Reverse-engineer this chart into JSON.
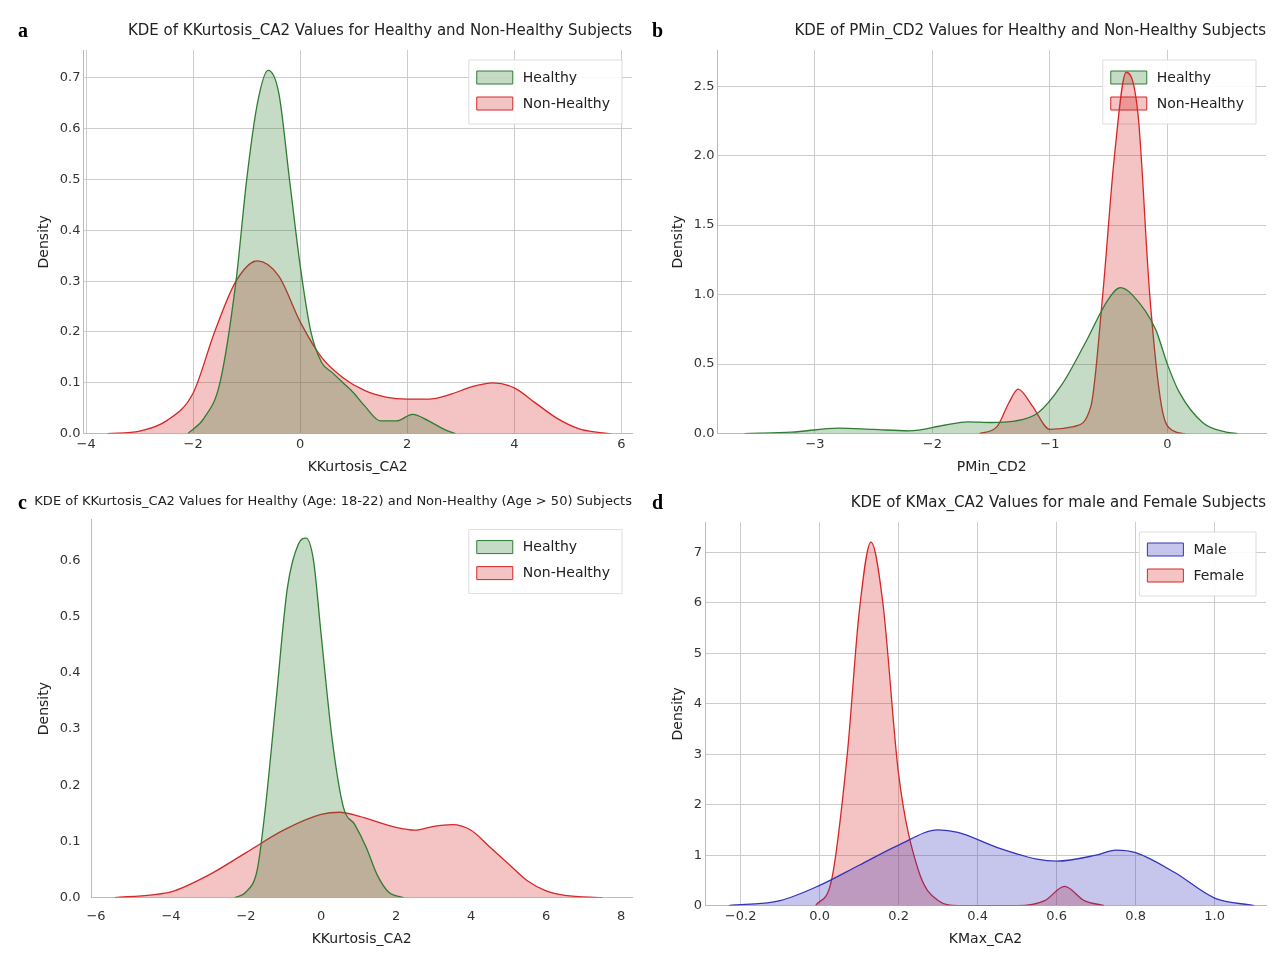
{
  "chart_data": [
    {
      "type": "area",
      "title": "KDE of KKurtosis_CA2 Values for Healthy and Non-Healthy Subjects",
      "xlabel": "KKurtosis_CA2",
      "ylabel": "Density",
      "annotations": [
        "a"
      ],
      "xlim": [
        -4.05,
        6.2
      ],
      "ylim": [
        0,
        0.755
      ],
      "xticks": [
        {
          "value": -4,
          "label": "−4"
        },
        {
          "value": -2,
          "label": "−2"
        },
        0,
        2,
        4,
        6
      ],
      "yticks": [
        {
          "value": 0,
          "label": "0.0"
        },
        0.1,
        0.2,
        0.3,
        0.4,
        0.5,
        0.6,
        0.7
      ],
      "grid": true,
      "legend": "top right",
      "series": [
        {
          "name": "Healthy",
          "color": "#2e7d32",
          "x": [
            -2.1,
            -1.8,
            -1.5,
            -1.2,
            -1.0,
            -0.8,
            -0.6,
            -0.4,
            -0.2,
            0,
            0.2,
            0.4,
            0.6,
            0.8,
            1.0,
            1.2,
            1.5,
            1.8,
            2.1,
            2.4,
            2.7,
            2.9
          ],
          "values": [
            0,
            0.03,
            0.1,
            0.3,
            0.5,
            0.65,
            0.715,
            0.67,
            0.5,
            0.33,
            0.2,
            0.14,
            0.12,
            0.1,
            0.08,
            0.055,
            0.025,
            0.025,
            0.038,
            0.025,
            0.008,
            0
          ]
        },
        {
          "name": "Non-Healthy",
          "color": "#d62728",
          "x": [
            -3.6,
            -3,
            -2.5,
            -2,
            -1.6,
            -1.2,
            -0.8,
            -0.4,
            0,
            0.4,
            0.8,
            1.2,
            1.6,
            2,
            2.4,
            2.8,
            3.2,
            3.6,
            4,
            4.4,
            4.8,
            5.2,
            5.6,
            5.8
          ],
          "values": [
            0,
            0.005,
            0.025,
            0.08,
            0.2,
            0.3,
            0.34,
            0.31,
            0.22,
            0.15,
            0.11,
            0.085,
            0.072,
            0.068,
            0.068,
            0.077,
            0.092,
            0.1,
            0.09,
            0.06,
            0.03,
            0.01,
            0.002,
            0
          ]
        }
      ]
    },
    {
      "type": "area",
      "title": "KDE of PMin_CD2 Values for Healthy and Non-Healthy Subjects",
      "xlabel": "PMin_CD2",
      "ylabel": "Density",
      "annotations": [
        "b"
      ],
      "xlim": [
        -3.83,
        0.84
      ],
      "ylim": [
        0,
        2.76
      ],
      "xticks": [
        {
          "value": -3,
          "label": "−3"
        },
        {
          "value": -2,
          "label": "−2"
        },
        {
          "value": -1,
          "label": "−1"
        },
        0
      ],
      "yticks": [
        {
          "value": 0,
          "label": "0.0"
        },
        0.5,
        {
          "value": 1,
          "label": "1.0"
        },
        1.5,
        {
          "value": 2,
          "label": "2.0"
        },
        2.5
      ],
      "grid": true,
      "legend": "top right",
      "series": [
        {
          "name": "Healthy",
          "color": "#2e7d32",
          "x": [
            -3.6,
            -3.2,
            -2.8,
            -2.5,
            -2.2,
            -1.9,
            -1.7,
            -1.5,
            -1.3,
            -1.1,
            -0.9,
            -0.7,
            -0.5,
            -0.4,
            -0.3,
            -0.1,
            0,
            0.1,
            0.3,
            0.5,
            0.6
          ],
          "values": [
            0,
            0.01,
            0.04,
            0.03,
            0.02,
            0.06,
            0.085,
            0.08,
            0.09,
            0.15,
            0.35,
            0.65,
            0.97,
            1.05,
            1.0,
            0.75,
            0.5,
            0.3,
            0.08,
            0.01,
            0
          ]
        },
        {
          "name": "Non-Healthy",
          "color": "#d62728",
          "x": [
            -1.6,
            -1.45,
            -1.35,
            -1.27,
            -1.15,
            -1.0,
            -0.8,
            -0.65,
            -0.55,
            -0.45,
            -0.35,
            -0.25,
            -0.15,
            -0.05,
            0.05,
            0.15
          ],
          "values": [
            0,
            0.05,
            0.22,
            0.32,
            0.2,
            0.03,
            0.05,
            0.2,
            1.0,
            2.0,
            2.6,
            2.3,
            1.0,
            0.2,
            0.02,
            0
          ]
        }
      ]
    },
    {
      "type": "area",
      "title": "KDE of KKurtosis_CA2 Values for Healthy (Age: 18-22) and Non-Healthy (Age > 50) Subjects",
      "xlabel": "KKurtosis_CA2",
      "ylabel": "Density",
      "annotations": [
        "c"
      ],
      "xlim": [
        -6.12,
        8.29
      ],
      "ylim": [
        0,
        0.673
      ],
      "xticks": [
        {
          "value": -6,
          "label": "−6"
        },
        {
          "value": -4,
          "label": "−4"
        },
        {
          "value": -2,
          "label": "−2"
        },
        0,
        2,
        4,
        6,
        8
      ],
      "yticks": [
        {
          "value": 0,
          "label": "0.0"
        },
        0.1,
        0.2,
        0.3,
        0.4,
        0.5,
        0.6
      ],
      "legend": "top right",
      "series": [
        {
          "name": "Healthy",
          "color": "#2e7d32",
          "x": [
            -2.3,
            -2,
            -1.7,
            -1.5,
            -1.2,
            -0.9,
            -0.6,
            -0.4,
            -0.2,
            0,
            0.3,
            0.6,
            0.9,
            1.2,
            1.5,
            1.8,
            2.2
          ],
          "values": [
            0,
            0.01,
            0.05,
            0.15,
            0.35,
            0.55,
            0.63,
            0.64,
            0.6,
            0.47,
            0.28,
            0.16,
            0.13,
            0.09,
            0.04,
            0.01,
            0
          ]
        },
        {
          "name": "Non-Healthy",
          "color": "#d62728",
          "x": [
            -5.5,
            -4.5,
            -4,
            -3,
            -2,
            -1,
            0,
            0.5,
            1,
            2,
            2.5,
            3,
            3.5,
            4,
            4.5,
            5,
            5.5,
            6,
            6.5,
            7.5
          ],
          "values": [
            0,
            0.005,
            0.01,
            0.04,
            0.08,
            0.12,
            0.148,
            0.152,
            0.145,
            0.125,
            0.12,
            0.127,
            0.13,
            0.12,
            0.09,
            0.06,
            0.03,
            0.012,
            0.004,
            0
          ]
        }
      ]
    },
    {
      "type": "area",
      "title": "KDE of KMax_CA2 Values for male and Female Subjects",
      "xlabel": "KMax_CA2",
      "ylabel": "Density",
      "annotations": [
        "d"
      ],
      "xlim": [
        -0.29,
        1.13
      ],
      "ylim": [
        0,
        7.6
      ],
      "xticks": [
        {
          "value": -0.2,
          "label": "−0.2"
        },
        {
          "value": 0,
          "label": "0.0"
        },
        0.2,
        0.4,
        0.6,
        0.8,
        {
          "value": 1,
          "label": "1.0"
        }
      ],
      "yticks": [
        0,
        1,
        2,
        3,
        4,
        5,
        6,
        7
      ],
      "grid": true,
      "legend": "top right",
      "series": [
        {
          "name": "Male",
          "color": "#3333bb",
          "x": [
            -0.23,
            -0.1,
            0,
            0.1,
            0.2,
            0.3,
            0.35,
            0.45,
            0.55,
            0.6,
            0.7,
            0.75,
            0.8,
            0.9,
            1.0,
            1.1
          ],
          "values": [
            0,
            0.1,
            0.4,
            0.8,
            1.2,
            1.5,
            1.45,
            1.15,
            0.92,
            0.88,
            1.0,
            1.1,
            1.05,
            0.65,
            0.15,
            0
          ]
        },
        {
          "name": "Female",
          "color": "#d62728",
          "x": [
            -0.01,
            0.03,
            0.07,
            0.1,
            0.13,
            0.16,
            0.2,
            0.25,
            0.3,
            0.35,
            0.5,
            0.57,
            0.62,
            0.67,
            0.72
          ],
          "values": [
            0,
            0.5,
            3.0,
            5.8,
            7.2,
            6.0,
            2.6,
            0.7,
            0.1,
            0,
            0,
            0.1,
            0.38,
            0.1,
            0
          ]
        }
      ]
    }
  ]
}
